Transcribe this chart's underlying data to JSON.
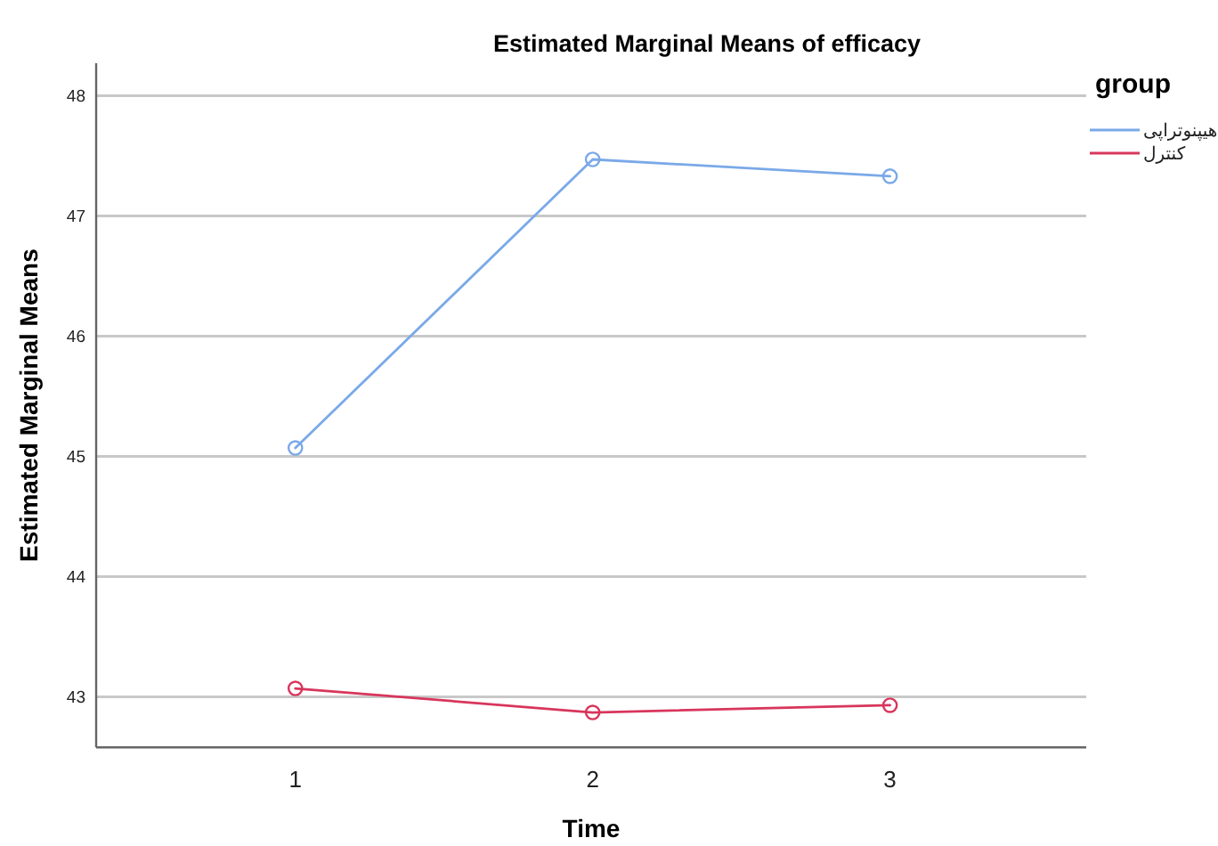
{
  "chart_data": {
    "type": "line",
    "title": "Estimated Marginal Means of efficacy",
    "xlabel": "Time",
    "ylabel": "Estimated Marginal Means",
    "legend_title": "group",
    "x": [
      1,
      2,
      3
    ],
    "series": [
      {
        "name": "هیپنوتراپی",
        "color": "#7aa9e8",
        "values": [
          45.07,
          47.47,
          47.33
        ]
      },
      {
        "name": "کنترل",
        "color": "#d8365c",
        "values": [
          43.07,
          42.87,
          42.93
        ]
      }
    ],
    "xlim": [
      0.33,
      3.66
    ],
    "xticks": [
      1,
      2,
      3
    ],
    "ylim": [
      42.58,
      48.27
    ],
    "yticks": [
      43,
      44,
      45,
      46,
      47,
      48
    ],
    "grid": "y",
    "legend": "right",
    "marker": "circle",
    "line_style": "solid"
  }
}
